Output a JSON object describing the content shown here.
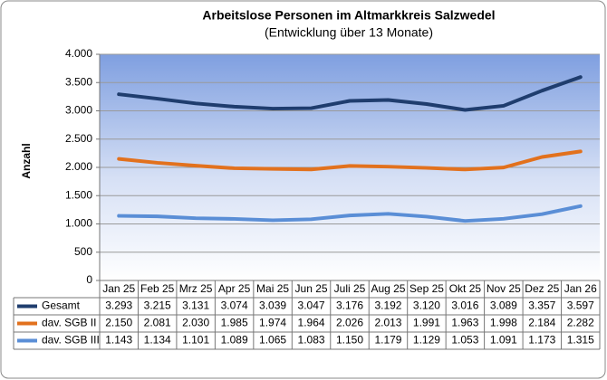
{
  "chart_data": {
    "type": "line",
    "title": "Arbeitslose Personen im Altmarkkreis Salzwedel",
    "subtitle": "(Entwicklung über 13 Monate)",
    "y_label": "Anzahl",
    "categories": [
      "Jan 25",
      "Feb 25",
      "Mrz 25",
      "Apr 25",
      "Mai 25",
      "Jun 25",
      "Juli 25",
      "Aug 25",
      "Sep 25",
      "Okt 25",
      "Nov 25",
      "Dez 25",
      "Jan 26"
    ],
    "series": [
      {
        "name": "Gesamt",
        "color": "#1f3d6e",
        "values": [
          3293,
          3215,
          3131,
          3074,
          3039,
          3047,
          3176,
          3192,
          3120,
          3016,
          3089,
          3357,
          3597
        ],
        "value_labels": [
          "3.293",
          "3.215",
          "3.131",
          "3.074",
          "3.039",
          "3.047",
          "3.176",
          "3.192",
          "3.120",
          "3.016",
          "3.089",
          "3.357",
          "3.597"
        ]
      },
      {
        "name": "dav. SGB II",
        "color": "#e2711d",
        "values": [
          2150,
          2081,
          2030,
          1985,
          1974,
          1964,
          2026,
          2013,
          1991,
          1963,
          1998,
          2184,
          2282
        ],
        "value_labels": [
          "2.150",
          "2.081",
          "2.030",
          "1.985",
          "1.974",
          "1.964",
          "2.026",
          "2.013",
          "1.991",
          "1.963",
          "1.998",
          "2.184",
          "2.282"
        ]
      },
      {
        "name": "dav. SGB III",
        "color": "#5a8ed6",
        "values": [
          1143,
          1134,
          1101,
          1089,
          1065,
          1083,
          1150,
          1179,
          1129,
          1053,
          1091,
          1173,
          1315
        ],
        "value_labels": [
          "1.143",
          "1.134",
          "1.101",
          "1.089",
          "1.065",
          "1.083",
          "1.150",
          "1.179",
          "1.129",
          "1.053",
          "1.091",
          "1.173",
          "1.315"
        ]
      }
    ],
    "ylim": [
      0,
      4000
    ],
    "yticks": [
      0,
      500,
      {
        "value": 1000,
        "label": "1.000"
      },
      {
        "value": 1500,
        "label": "1.500"
      },
      {
        "value": 2000,
        "label": "2.000"
      },
      {
        "value": 2500,
        "label": "2.500"
      },
      {
        "value": 3000,
        "label": "3.000"
      },
      {
        "value": 3500,
        "label": "3.500"
      },
      {
        "value": 4000,
        "label": "4.000"
      }
    ],
    "grid": true
  }
}
